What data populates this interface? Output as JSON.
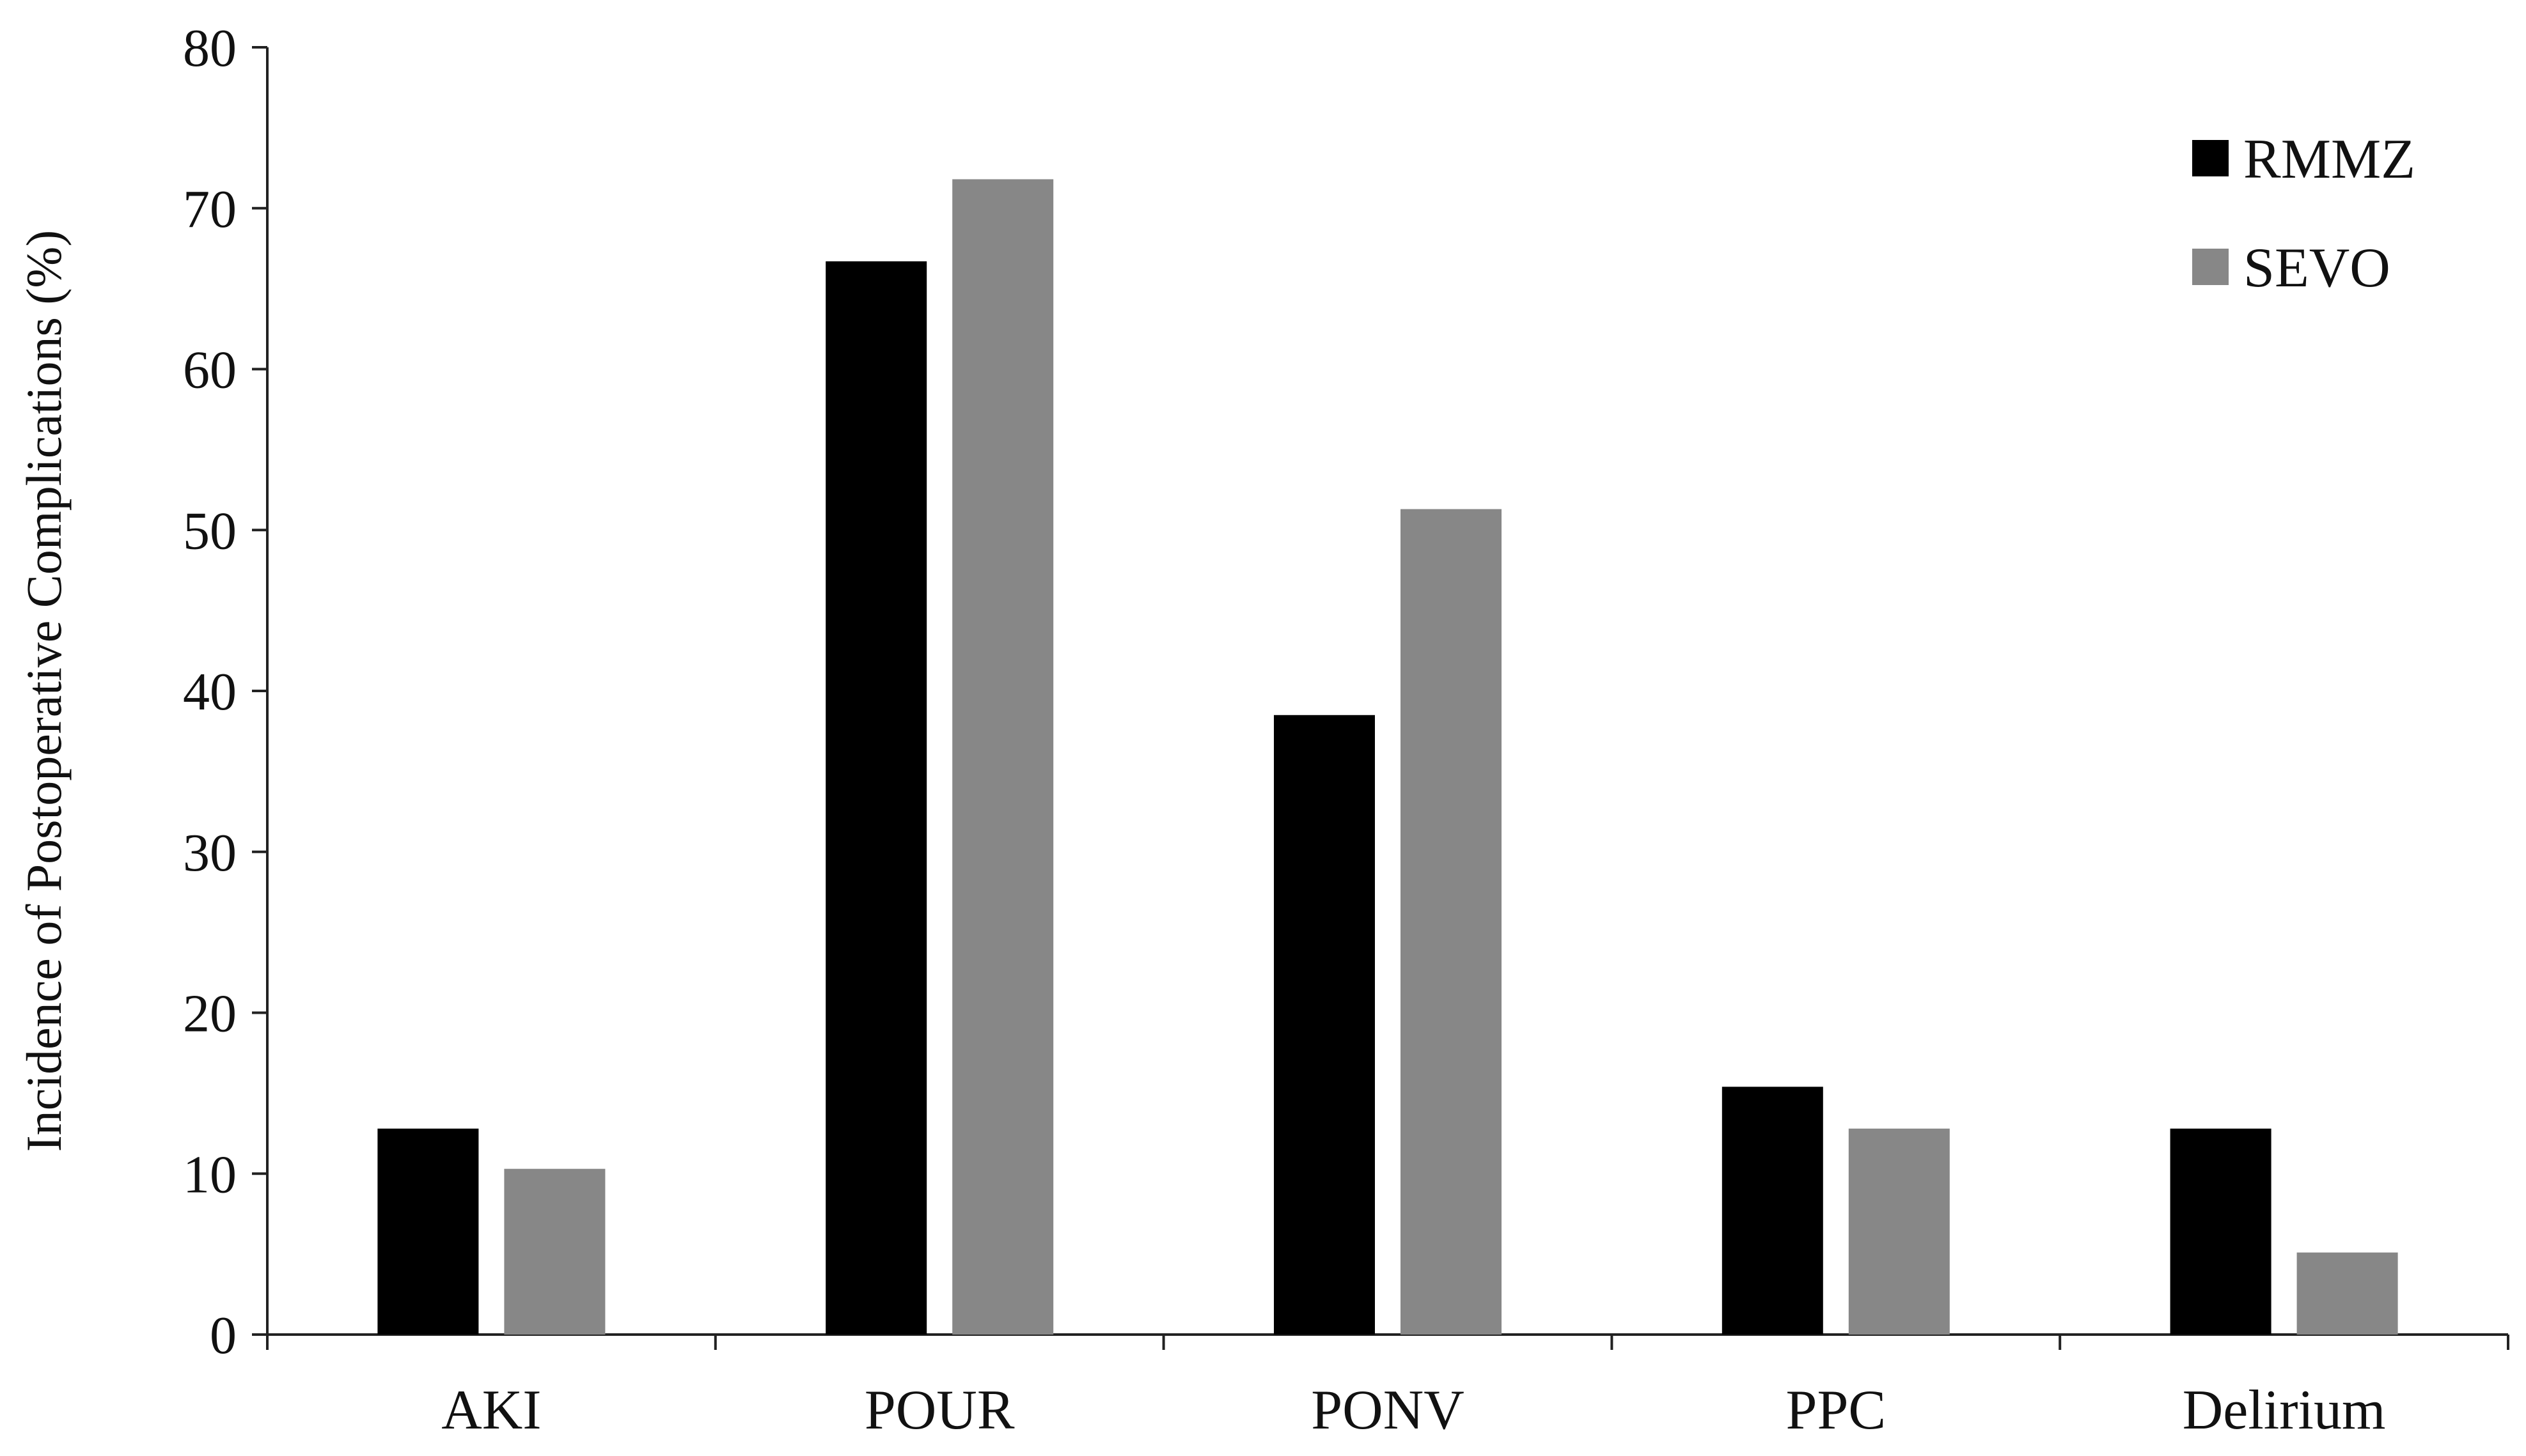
{
  "chart_data": {
    "type": "bar",
    "title": "",
    "xlabel": "",
    "ylabel": "Incidence of Postoperative Complications (%)",
    "ylim": [
      0,
      80
    ],
    "yticks": [
      0,
      10,
      20,
      30,
      40,
      50,
      60,
      70,
      80
    ],
    "grid": false,
    "legend_position": "top-right",
    "categories": [
      "AKI",
      "POUR",
      "PONV",
      "PPC",
      "Delirium"
    ],
    "series": [
      {
        "name": "RMMZ",
        "color": "#000000",
        "values": [
          12.8,
          66.7,
          38.5,
          15.4,
          12.8
        ]
      },
      {
        "name": "SEVO",
        "color": "#878787",
        "values": [
          10.3,
          71.8,
          51.3,
          12.8,
          5.1
        ]
      }
    ]
  }
}
